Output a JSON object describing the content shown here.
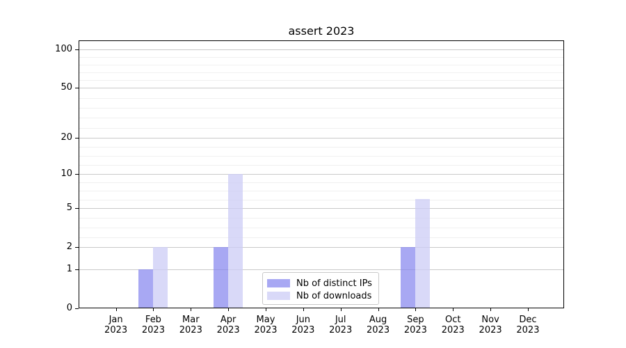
{
  "chart_data": {
    "type": "bar",
    "title": "assert 2023",
    "months": [
      "Jan",
      "Feb",
      "Mar",
      "Apr",
      "May",
      "Jun",
      "Jul",
      "Aug",
      "Sep",
      "Oct",
      "Nov",
      "Dec"
    ],
    "year": "2023",
    "series": [
      {
        "name": "Nb of distinct IPs",
        "color": "rgba(136,136,238,0.73)",
        "values": [
          0,
          1,
          0,
          2,
          0,
          0,
          0,
          0,
          2,
          0,
          0,
          0
        ]
      },
      {
        "name": "Nb of downloads",
        "color": "rgba(204,204,245,0.75)",
        "values": [
          0,
          2,
          0,
          10,
          0,
          0,
          0,
          0,
          6,
          0,
          0,
          0
        ]
      }
    ],
    "yscale": "log1p",
    "yticks": [
      0,
      1,
      2,
      5,
      10,
      20,
      50,
      100
    ],
    "ylim": [
      0,
      117
    ],
    "grid": "horizontal-major-and-minor",
    "legend_position": "lower-center",
    "colors": {
      "axis": "#000000",
      "grid_major": "#c9c9c9",
      "grid_minor": "#f0f0f0",
      "background": "#ffffff"
    }
  }
}
